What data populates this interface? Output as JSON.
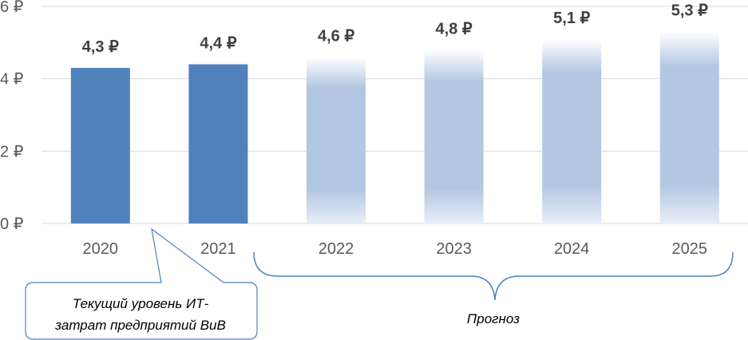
{
  "chart_data": {
    "type": "bar",
    "categories": [
      "2020",
      "2021",
      "2022",
      "2023",
      "2024",
      "2025"
    ],
    "values": [
      4.3,
      4.4,
      4.6,
      4.8,
      5.1,
      5.3
    ],
    "value_labels": [
      "4,3 ₽",
      "4,4 ₽",
      "4,6 ₽",
      "4,8 ₽",
      "5,1 ₽",
      "5,3 ₽"
    ],
    "forecast": [
      false,
      false,
      true,
      true,
      true,
      true
    ],
    "y_ticks": [
      {
        "value": 0,
        "label": "0 ₽"
      },
      {
        "value": 2,
        "label": "2 ₽"
      },
      {
        "value": 4,
        "label": "4 ₽"
      },
      {
        "value": 6,
        "label": "6 ₽"
      }
    ],
    "ylim": [
      0,
      6
    ],
    "grid": true,
    "title": "",
    "xlabel": "",
    "ylabel": "",
    "colors": {
      "actual": "#4f81bd",
      "forecast": "#b4c7e2",
      "grid": "#d9d9d9",
      "callout": "#4f81bd"
    }
  },
  "annotations": {
    "callout_line1": "Текущий уровень ИТ-",
    "callout_line2": "затрат предприятий ВиВ",
    "brace_label": "Прогноз"
  }
}
